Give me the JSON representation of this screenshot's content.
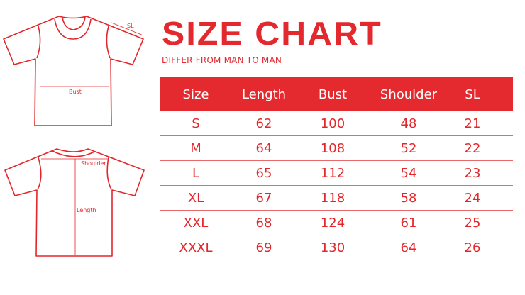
{
  "title": "SIZE CHART",
  "subtitle": "DIFFER FROM MAN TO MAN",
  "diagram_labels": {
    "sl": "SL",
    "bust": "Bust",
    "shoulder": "Shoulder",
    "length": "Length"
  },
  "table": {
    "headers": [
      "Size",
      "Length",
      "Bust",
      "Shoulder",
      "SL"
    ],
    "rows": [
      [
        "S",
        "62",
        "100",
        "48",
        "21"
      ],
      [
        "M",
        "64",
        "108",
        "52",
        "22"
      ],
      [
        "L",
        "65",
        "112",
        "54",
        "23"
      ],
      [
        "XL",
        "67",
        "118",
        "58",
        "24"
      ],
      [
        "XXL",
        "68",
        "124",
        "61",
        "25"
      ],
      [
        "XXXL",
        "69",
        "130",
        "64",
        "26"
      ]
    ]
  },
  "colors": {
    "accent": "#e42a2e"
  }
}
